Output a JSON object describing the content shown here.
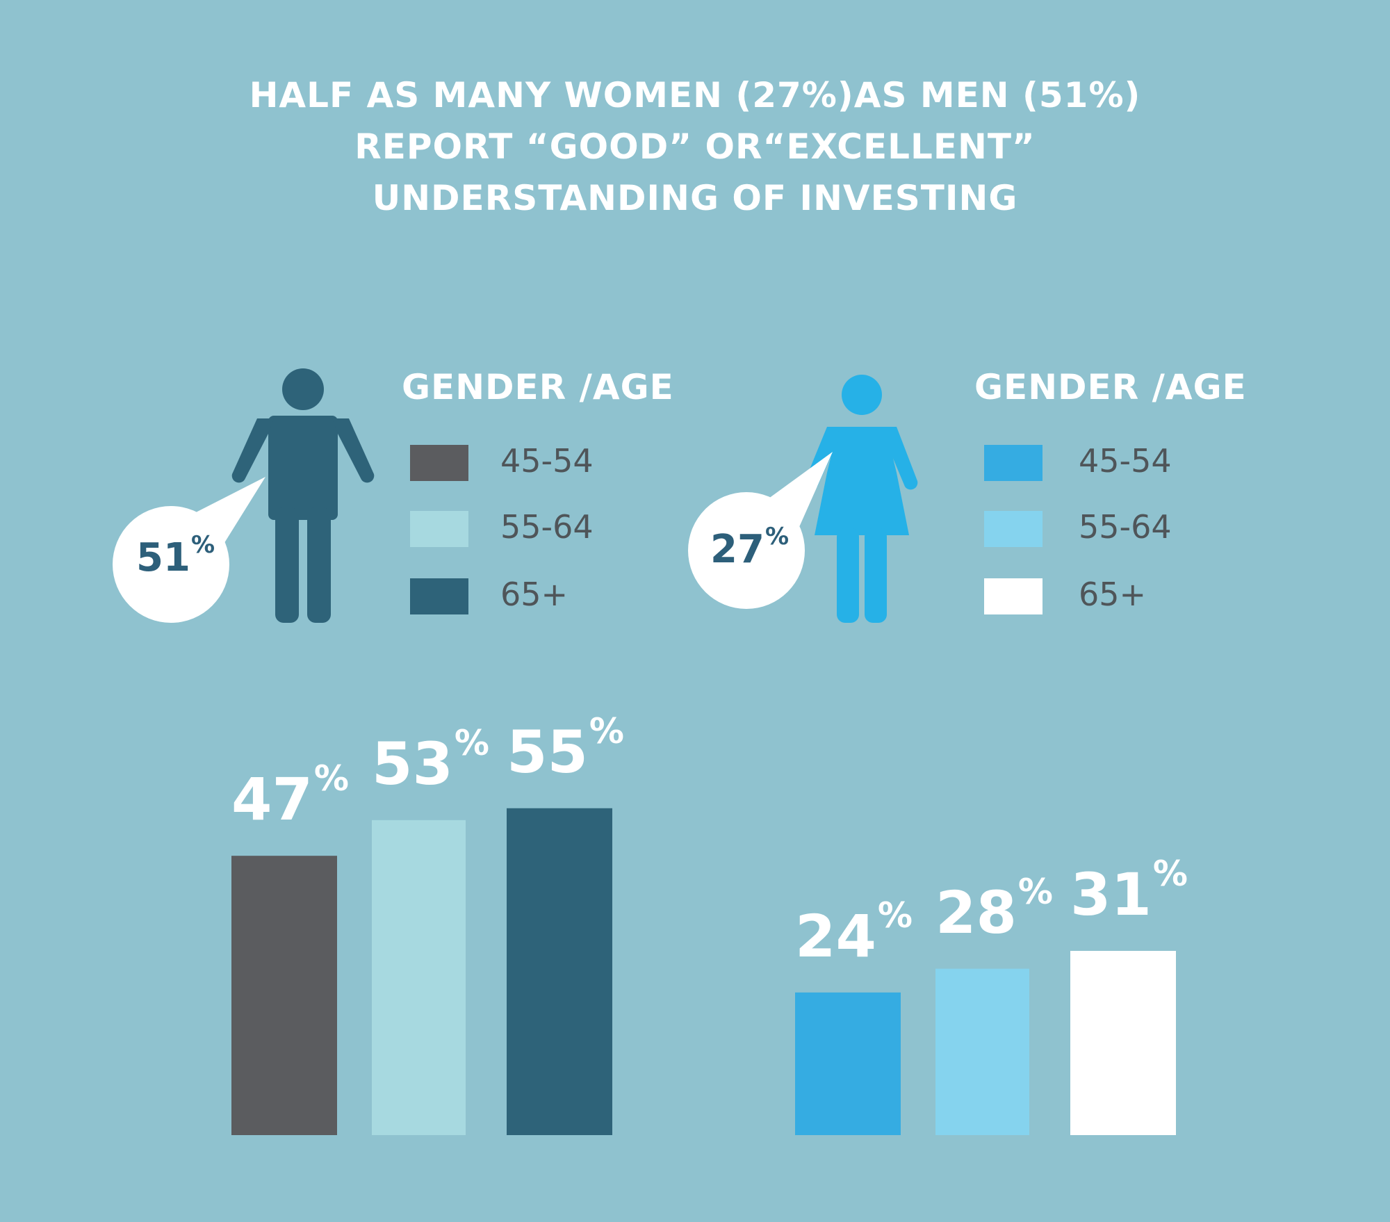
{
  "title": {
    "line1": "HALF AS MANY WOMEN (27%)AS MEN (51%)",
    "line2": "REPORT “GOOD” OR“EXCELLENT”",
    "line3": "UNDERSTANDING OF INVESTING"
  },
  "men": {
    "overall_value": "51",
    "overall_unit": "%",
    "legend_title": "GENDER /AGE",
    "legend": [
      {
        "label": "45-54",
        "color": "#5b5c5f"
      },
      {
        "label": "55-64",
        "color": "#a7d9e0"
      },
      {
        "label": "65+",
        "color": "#2e6379"
      }
    ],
    "figure_color": "#2e6379",
    "icon": "man-icon"
  },
  "women": {
    "overall_value": "27",
    "overall_unit": "%",
    "legend_title": "GENDER /AGE",
    "legend": [
      {
        "label": "45-54",
        "color": "#35ace2"
      },
      {
        "label": "55-64",
        "color": "#85d3ee"
      },
      {
        "label": "65+",
        "color": "#ffffff"
      }
    ],
    "figure_color": "#26b1e7",
    "icon": "woman-icon"
  },
  "chart_data": [
    {
      "type": "bar",
      "categories": [
        "45-54",
        "55-64",
        "65+"
      ],
      "values": [
        47,
        53,
        55
      ],
      "value_labels": [
        "47",
        "53",
        "55"
      ],
      "unit": "%",
      "colors": [
        "#5b5c5f",
        "#a7d9e0",
        "#2e6379"
      ],
      "ylim": [
        0,
        100
      ]
    },
    {
      "type": "bar",
      "categories": [
        "45-54",
        "55-64",
        "65+"
      ],
      "values": [
        24,
        28,
        31
      ],
      "value_labels": [
        "24",
        "28",
        "31"
      ],
      "unit": "%",
      "colors": [
        "#35ace2",
        "#85d3ee",
        "#ffffff"
      ],
      "ylim": [
        0,
        100
      ]
    }
  ]
}
